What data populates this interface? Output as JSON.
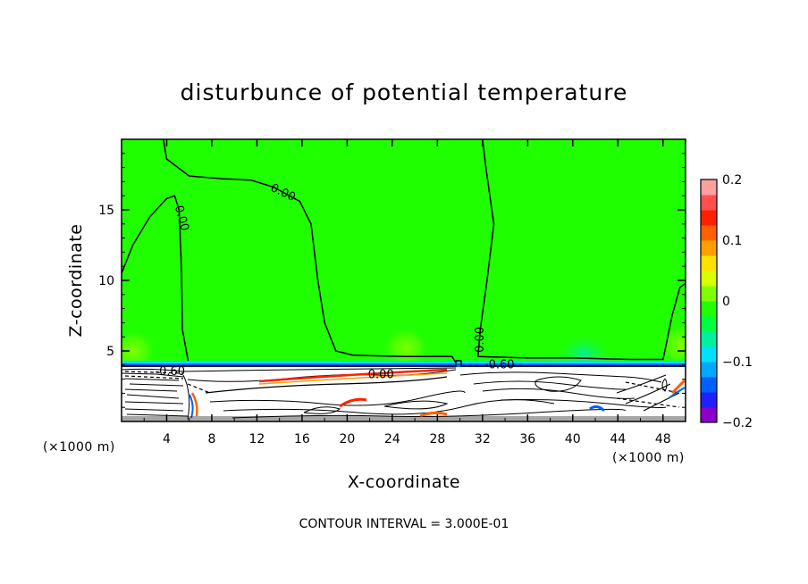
{
  "chart_data": {
    "type": "heatmap",
    "title": "disturbunce of potential temperature",
    "xlabel": "X-coordinate",
    "ylabel": "Z-coordinate",
    "x_unit": "(×1000 m)",
    "z_unit": "(×1000 m)",
    "xlim": [
      0,
      50
    ],
    "ylim": [
      0,
      20
    ],
    "x_ticks": [
      4,
      8,
      12,
      16,
      20,
      24,
      28,
      32,
      36,
      40,
      44,
      48
    ],
    "y_ticks": [
      5,
      10,
      15
    ],
    "colorbar": {
      "range": [
        -0.2,
        0.2
      ],
      "tick_labels": [
        {
          "value": 0.2,
          "label": "0.2"
        },
        {
          "value": 0.1,
          "label": "0.1"
        },
        {
          "value": 0,
          "label": "0"
        },
        {
          "value": -0.1,
          "label": "−0.1"
        },
        {
          "value": -0.2,
          "label": "−0.2"
        }
      ],
      "colors": [
        "#8b00c8",
        "#2020ff",
        "#0060ff",
        "#00a8ff",
        "#00e0ff",
        "#00f0a0",
        "#00ff40",
        "#20ff00",
        "#80ff00",
        "#d8ff00",
        "#ffe000",
        "#ffa000",
        "#ff6000",
        "#ff2000",
        "#ff5050",
        "#ffa0a0"
      ]
    },
    "contour_interval_text": "CONTOUR INTERVAL = 3.000E-01",
    "contour_labels": [
      {
        "text": "0.00",
        "x": 14.3,
        "z": 16.2,
        "angle": 25
      },
      {
        "text": "0.00",
        "x": 5.3,
        "z": 14.4,
        "angle": 75
      },
      {
        "text": "0.00",
        "x": 31.8,
        "z": 5.8,
        "angle": -90
      },
      {
        "text": "0.00",
        "x": 23.0,
        "z": 3.3,
        "angle": 0
      },
      {
        "text": "-0.60",
        "x": 4.3,
        "z": 3.5,
        "angle": 0
      },
      {
        "text": "-0.60",
        "x": 33.5,
        "z": 4.0,
        "angle": 0
      }
    ],
    "zero_contours": [
      [
        [
          0,
          10.5
        ],
        [
          1,
          12.5
        ],
        [
          2.5,
          14.5
        ],
        [
          4,
          15.8
        ],
        [
          4.7,
          16.0
        ],
        [
          5.1,
          15
        ],
        [
          5.3,
          11
        ],
        [
          5.4,
          6.5
        ],
        [
          5.9,
          4.3
        ]
      ],
      [
        [
          3.7,
          20
        ],
        [
          4.0,
          18.6
        ],
        [
          6,
          17.4
        ],
        [
          9,
          17.2
        ],
        [
          11.5,
          17.1
        ],
        [
          13.5,
          16.6
        ],
        [
          15.8,
          15.6
        ],
        [
          16.8,
          14
        ],
        [
          17.4,
          10
        ],
        [
          18,
          7
        ],
        [
          19,
          5
        ],
        [
          20.5,
          4.7
        ],
        [
          25,
          4.6
        ],
        [
          29.3,
          4.6
        ],
        [
          29.6,
          4.2
        ]
      ],
      [
        [
          32.0,
          20
        ],
        [
          32.3,
          18
        ],
        [
          33.0,
          14
        ],
        [
          32.4,
          10
        ],
        [
          31.8,
          6.5
        ],
        [
          31.6,
          4.6
        ],
        [
          36,
          4.5
        ],
        [
          40,
          4.5
        ],
        [
          45,
          4.4
        ],
        [
          48,
          4.4
        ],
        [
          48.3,
          5.5
        ],
        [
          48.8,
          7.5
        ],
        [
          49.5,
          9.5
        ],
        [
          50,
          9.8
        ]
      ]
    ],
    "field_regions": [
      {
        "name": "warm-blob",
        "x": 1.0,
        "z": 5.0,
        "value": 0.04
      },
      {
        "name": "warm-blob",
        "x": 25.2,
        "z": 5.2,
        "value": 0.04
      },
      {
        "name": "warm-blob",
        "x": 49.6,
        "z": 5.4,
        "value": 0.04
      },
      {
        "name": "cool-blob",
        "x": 41.0,
        "z": 4.8,
        "value": -0.03
      }
    ]
  }
}
